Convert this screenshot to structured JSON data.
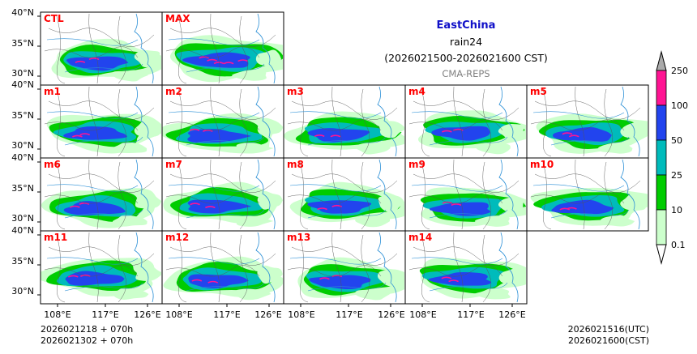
{
  "header": {
    "region": "EastChina",
    "variable": "rain24",
    "period": "(2026021500-2026021600 CST)",
    "system": "CMA-REPS"
  },
  "colors": {
    "title": "#1010c8",
    "panel_label": "#ff0000",
    "system_label": "#808080",
    "levels": [
      "#ccffcc",
      "#00cc00",
      "#00bbbb",
      "#2244ee",
      "#ff1493"
    ],
    "over": "#aaaaaa"
  },
  "panels": [
    "CTL",
    "MAX",
    "m1",
    "m2",
    "m3",
    "m4",
    "m5",
    "m6",
    "m7",
    "m8",
    "m9",
    "m10",
    "m11",
    "m12",
    "m13",
    "m14"
  ],
  "axes": {
    "lat_labels": [
      "40°N",
      "35°N",
      "30°N"
    ],
    "lon_labels": [
      "108°E",
      "117°E",
      "126°E"
    ]
  },
  "colorbar": {
    "levels": [
      "0.1",
      "10",
      "25",
      "50",
      "100",
      "250"
    ]
  },
  "footer": {
    "init_utc": "2026021218 + 070h",
    "init_cst": "2026021302 + 070h",
    "valid_utc": "2026021516(UTC)",
    "valid_cst": "2026021600(CST)"
  }
}
